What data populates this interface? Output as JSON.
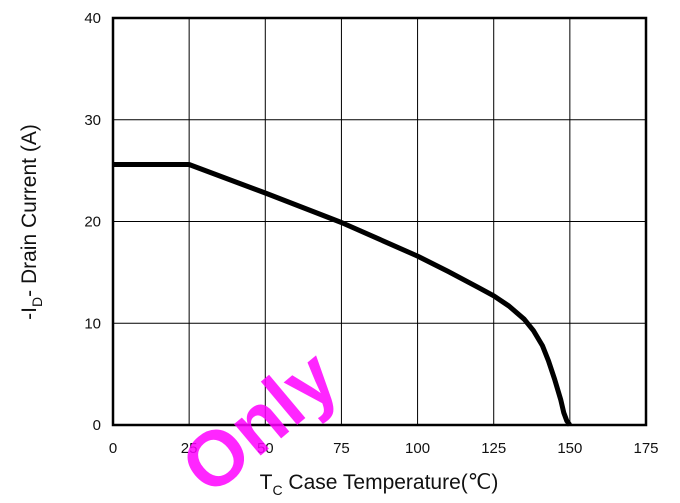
{
  "chart_data": {
    "type": "line",
    "xlabel_main": "T",
    "xlabel_sub": "C",
    "xlabel_rest": " Case Temperature(℃)",
    "ylabel_pre": "-I",
    "ylabel_sub": "D",
    "ylabel_rest": "- Drain Current (A)",
    "xlim": [
      0,
      175
    ],
    "ylim": [
      0,
      40
    ],
    "xticks": [
      0,
      25,
      50,
      75,
      100,
      125,
      150,
      175
    ],
    "yticks": [
      0,
      10,
      20,
      30,
      40
    ],
    "grid": true,
    "series": [
      {
        "color": "#000000",
        "x": [
          0,
          25,
          50,
          75,
          100,
          110,
          120,
          125,
          130,
          135,
          138,
          141,
          143,
          145,
          147,
          148,
          149,
          150
        ],
        "y": [
          25.6,
          25.6,
          22.8,
          19.9,
          16.6,
          15.1,
          13.5,
          12.7,
          11.7,
          10.4,
          9.3,
          7.8,
          6.3,
          4.5,
          2.5,
          1.2,
          0.4,
          0
        ]
      }
    ]
  },
  "watermark_text": "Only"
}
